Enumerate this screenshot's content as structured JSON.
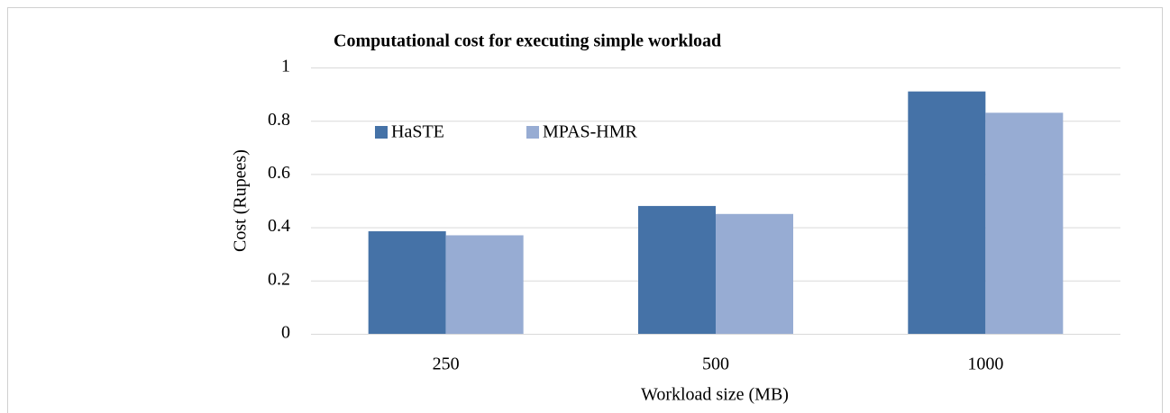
{
  "chart_data": {
    "type": "bar",
    "title": "Computational cost for executing simple workload",
    "x_label": "Workload size (MB)",
    "y_label": "Cost (Rupees)",
    "categories": [
      "250",
      "500",
      "1000"
    ],
    "series": [
      {
        "name": "HaSTE",
        "color": "#4572a7",
        "values": [
          0.385,
          0.48,
          0.91
        ]
      },
      {
        "name": "MPAS-HMR",
        "color": "#97acd3",
        "values": [
          0.37,
          0.45,
          0.83
        ]
      }
    ],
    "ylim": [
      0,
      1
    ],
    "yticks": [
      0,
      0.2,
      0.4,
      0.6,
      0.8,
      1
    ],
    "grid": true,
    "legend": "upper-left"
  }
}
